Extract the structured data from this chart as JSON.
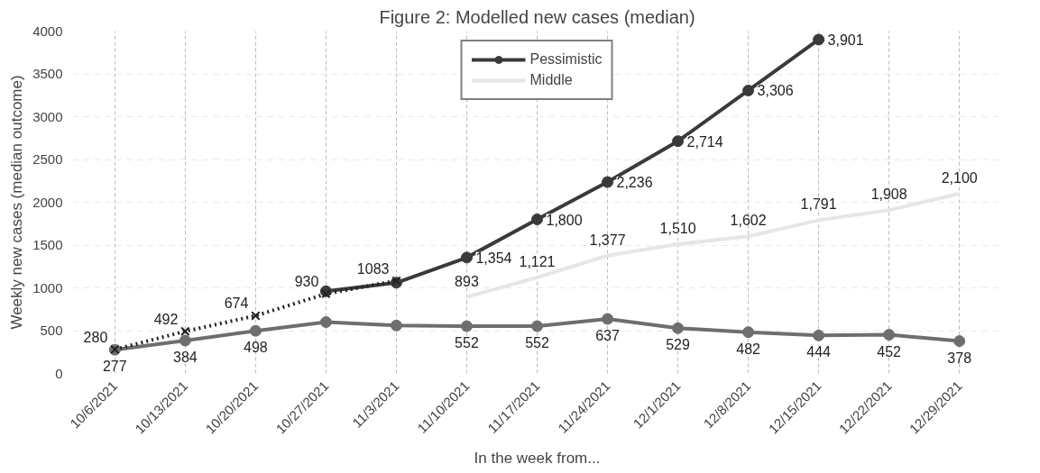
{
  "chart_data": {
    "type": "line",
    "title": "Figure 2: Modelled new cases (median)",
    "xlabel": "In the week from...",
    "ylabel": "Weekly new cases (median outcome)",
    "categories": [
      "10/6/2021",
      "10/13/2021",
      "10/20/2021",
      "10/27/2021",
      "11/3/2021",
      "11/10/2021",
      "11/17/2021",
      "11/24/2021",
      "12/1/2021",
      "12/8/2021",
      "12/15/2021",
      "12/22/2021",
      "12/29/2021"
    ],
    "ylim": [
      0,
      4000
    ],
    "yticks": [
      0,
      500,
      1000,
      1500,
      2000,
      2500,
      3000,
      3500,
      4000
    ],
    "grid": true,
    "legend": "top",
    "series": [
      {
        "name": "Pessimistic",
        "color": "#3a3a3a",
        "marker": "circle",
        "line_style": "solid",
        "values": [
          null,
          null,
          null,
          960,
          1060,
          1354,
          1800,
          2236,
          2714,
          3306,
          3901,
          null,
          null
        ],
        "value_labels": [
          null,
          null,
          null,
          null,
          null,
          "1,354",
          "1,800",
          "2,236",
          "2,714",
          "3,306",
          "3,901",
          null,
          null
        ]
      },
      {
        "name": "Middle",
        "color": "#e6e6e6",
        "marker": "none",
        "line_style": "solid",
        "values": [
          null,
          null,
          null,
          null,
          null,
          893,
          1121,
          1377,
          1510,
          1602,
          1791,
          1908,
          2100
        ],
        "value_labels": [
          null,
          null,
          null,
          null,
          null,
          "893",
          "1,121",
          "1,377",
          "1,510",
          "1,602",
          "1,791",
          "1,908",
          "2,100"
        ]
      },
      {
        "color": "#6e6e6e",
        "marker": "circle",
        "line_style": "solid",
        "values": [
          277,
          384,
          498,
          600,
          560,
          552,
          552,
          637,
          529,
          482,
          444,
          452,
          378
        ],
        "value_labels": [
          "277",
          "384",
          "498",
          null,
          null,
          "552",
          "552",
          "637",
          "529",
          "482",
          "444",
          "452",
          "378"
        ]
      },
      {
        "color": "#222222",
        "marker": "cross",
        "line_style": "dotted",
        "values": [
          280,
          492,
          674,
          930,
          1083,
          null,
          null,
          null,
          null,
          null,
          null,
          null,
          null
        ],
        "value_labels": [
          "280",
          "492",
          "674",
          "930",
          "1083",
          null,
          null,
          null,
          null,
          null,
          null,
          null,
          null
        ]
      }
    ]
  }
}
